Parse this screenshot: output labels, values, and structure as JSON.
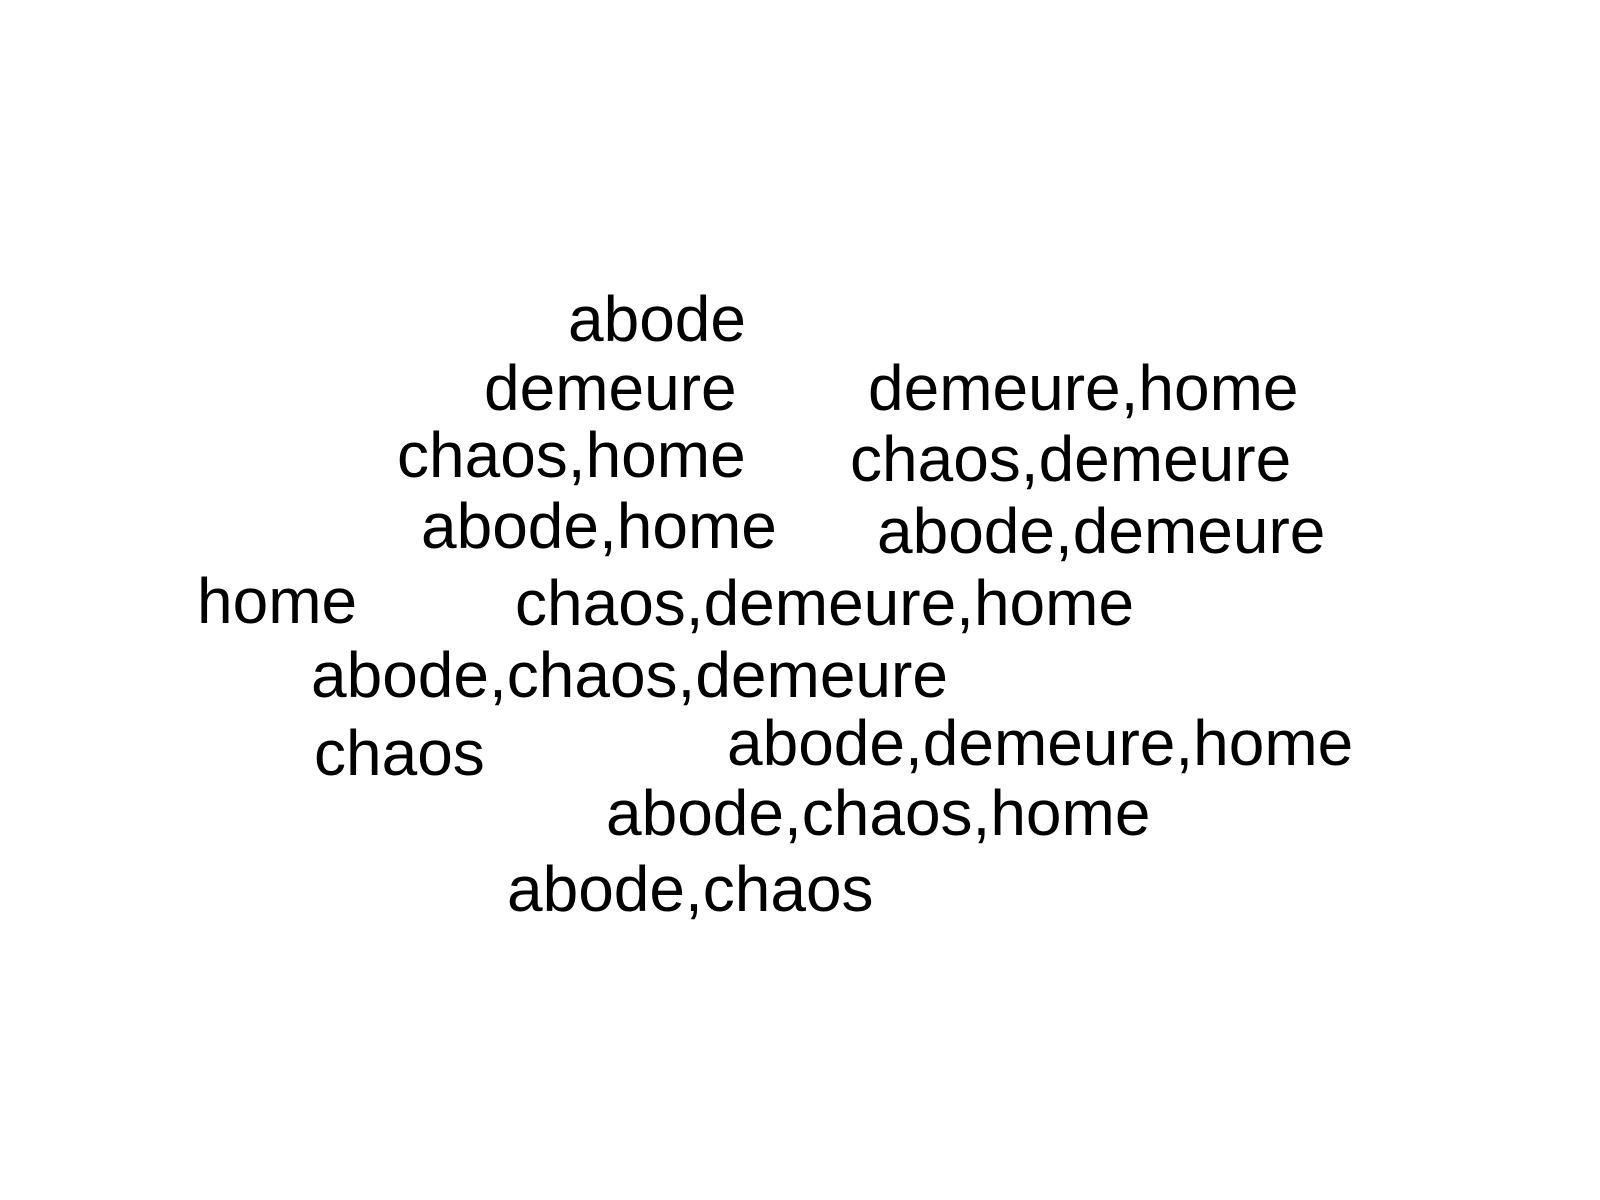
{
  "words": [
    "abode",
    "demeure",
    "demeure,home",
    "chaos,home",
    "chaos,demeure",
    "abode,home",
    "abode,demeure",
    "home",
    "chaos,demeure,home",
    "abode,chaos,demeure",
    "chaos",
    "abode,demeure,home",
    "abode,chaos,home",
    "abode,chaos"
  ],
  "colors": {
    "background": "#ffffff",
    "text": "#000000"
  }
}
